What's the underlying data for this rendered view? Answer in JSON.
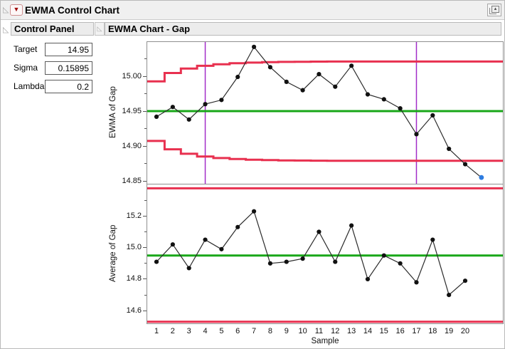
{
  "window": {
    "title": "EWMA Control Chart",
    "menu_icon": "red-triangle-menu",
    "menu_glyph": "▼",
    "corner_icon": "pop-out-window",
    "corner_glyph": "▴",
    "disclosure_glyph": "◺"
  },
  "control_panel": {
    "title": "Control Panel",
    "fields": [
      {
        "label": "Target",
        "value": "14.95"
      },
      {
        "label": "Sigma",
        "value": "0.15895"
      },
      {
        "label": "Lambda",
        "value": "0.2"
      }
    ]
  },
  "chart_section": {
    "title": "EWMA Chart - Gap"
  },
  "colors": {
    "limit_red": "#e8304f",
    "center_green": "#18a718",
    "phase_purple": "#a22cc8",
    "forecast_blue": "#2e7ce0",
    "series_black": "#2b2b2b",
    "point_black": "#111111"
  },
  "chart_data": [
    {
      "type": "line",
      "name": "ewma-chart",
      "ylabel": "EWMA of Gap",
      "x": [
        1,
        2,
        3,
        4,
        5,
        6,
        7,
        8,
        9,
        10,
        11,
        12,
        13,
        14,
        15,
        16,
        17,
        18,
        19,
        20
      ],
      "series": [
        {
          "name": "EWMA of Gap",
          "values": [
            14.942,
            14.956,
            14.938,
            14.96,
            14.966,
            14.999,
            15.042,
            15.013,
            14.992,
            14.98,
            15.003,
            14.985,
            15.015,
            14.974,
            14.967,
            14.954,
            14.917,
            14.944,
            14.896,
            14.874
          ]
        }
      ],
      "forecast_point": {
        "x": 21,
        "y": 14.855
      },
      "center_line": 14.95,
      "ucl_steps": [
        14.9927,
        15.0046,
        15.0111,
        15.0149,
        15.0172,
        15.0186,
        15.0195,
        15.0201,
        15.0205,
        15.0207,
        15.0209,
        15.021,
        15.021,
        15.0211,
        15.0211,
        15.0211,
        15.0211,
        15.0211,
        15.0211,
        15.0211
      ],
      "lcl_steps": [
        14.9073,
        14.8954,
        14.8889,
        14.8851,
        14.8828,
        14.8814,
        14.8805,
        14.8799,
        14.8795,
        14.8793,
        14.8791,
        14.879,
        14.879,
        14.8789,
        14.8789,
        14.8789,
        14.8789,
        14.8789,
        14.8789,
        14.8789
      ],
      "phase_lines_x": [
        4,
        17
      ],
      "y_ticks": [
        {
          "label": "15.00",
          "value": 15.0
        },
        {
          "label": "14.95",
          "value": 14.95
        },
        {
          "label": "14.90",
          "value": 14.9
        },
        {
          "label": "14.85",
          "value": 14.85
        }
      ],
      "y_minor_ticks": [
        15.025,
        14.975,
        14.925,
        14.875
      ],
      "ylim": [
        14.846,
        15.049
      ],
      "xlim": [
        0.43,
        22.32
      ],
      "grid": false
    },
    {
      "type": "line",
      "name": "average-chart",
      "ylabel": "Average of Gap",
      "xlabel": "Sample",
      "x": [
        1,
        2,
        3,
        4,
        5,
        6,
        7,
        8,
        9,
        10,
        11,
        12,
        13,
        14,
        15,
        16,
        17,
        18,
        19,
        20
      ],
      "series": [
        {
          "name": "Average of Gap",
          "values": [
            14.91,
            15.02,
            14.87,
            15.05,
            14.99,
            15.13,
            15.23,
            14.9,
            14.91,
            14.93,
            15.1,
            14.91,
            15.14,
            14.8,
            14.95,
            14.9,
            14.78,
            15.05,
            14.7,
            14.79
          ]
        }
      ],
      "center_line": 14.95,
      "ucl": 15.376,
      "lcl": 14.53,
      "x_tick_labels": [
        "1",
        "2",
        "3",
        "4",
        "5",
        "6",
        "7",
        "8",
        "9",
        "10",
        "11",
        "12",
        "13",
        "14",
        "15",
        "16",
        "17",
        "18",
        "19",
        "20"
      ],
      "y_ticks": [
        {
          "label": "15.2",
          "value": 15.2
        },
        {
          "label": "15.0",
          "value": 15.0
        },
        {
          "label": "14.8",
          "value": 14.8
        },
        {
          "label": "14.6",
          "value": 14.6
        }
      ],
      "y_minor_ticks": [
        15.3,
        15.1,
        14.9,
        14.7
      ],
      "ylim": [
        14.52,
        15.4
      ],
      "xlim": [
        0.43,
        22.32
      ],
      "grid": false
    }
  ]
}
